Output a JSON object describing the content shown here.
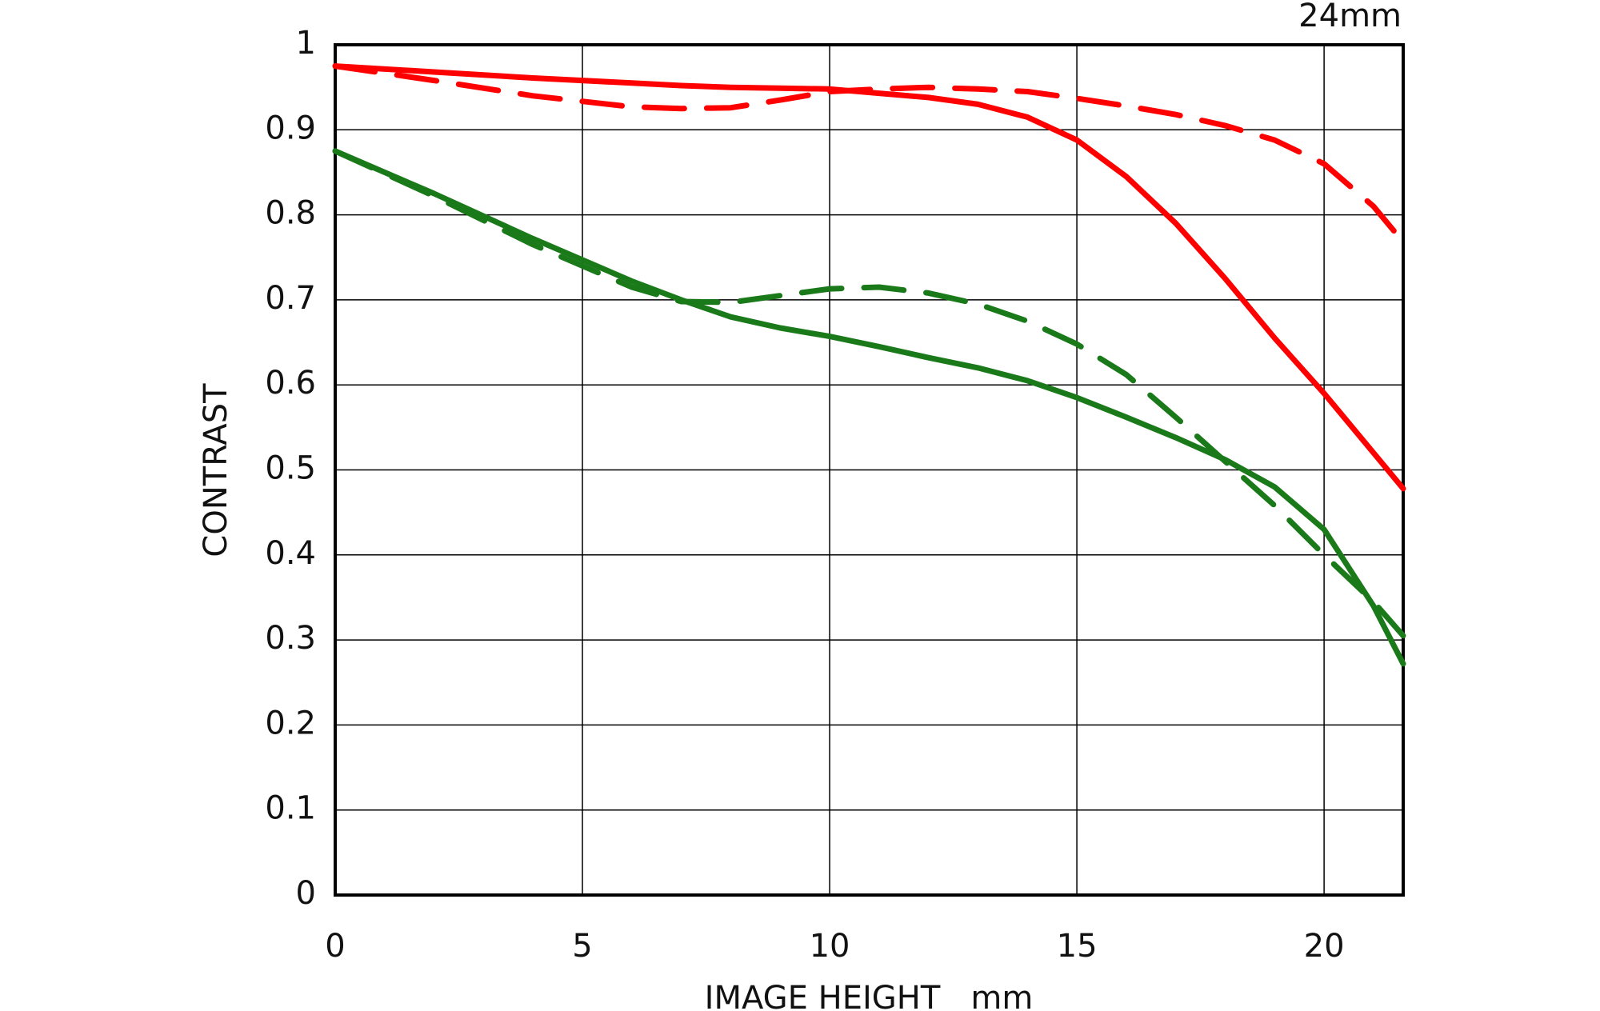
{
  "chart_data": {
    "type": "line",
    "title": "24mm",
    "x_label": "IMAGE HEIGHT   mm",
    "y_label": "CONTRAST",
    "x": [
      0,
      2,
      4,
      6,
      7,
      8,
      9,
      10,
      11,
      12,
      13,
      14,
      15,
      16,
      17,
      18,
      19,
      20,
      21,
      21.6
    ],
    "series": [
      {
        "color": "#ff0000",
        "dashed": false,
        "values": [
          0.975,
          0.968,
          0.961,
          0.955,
          0.952,
          0.95,
          0.949,
          0.948,
          0.943,
          0.938,
          0.93,
          0.915,
          0.888,
          0.845,
          0.79,
          0.725,
          0.655,
          0.59,
          0.52,
          0.478
        ]
      },
      {
        "color": "#ff0000",
        "dashed": true,
        "values": [
          0.975,
          0.958,
          0.94,
          0.927,
          0.925,
          0.926,
          0.935,
          0.945,
          0.948,
          0.95,
          0.948,
          0.945,
          0.937,
          0.928,
          0.918,
          0.905,
          0.888,
          0.86,
          0.81,
          0.768
        ]
      },
      {
        "color": "#1a7a1a",
        "dashed": false,
        "values": [
          0.875,
          0.825,
          0.772,
          0.722,
          0.7,
          0.68,
          0.667,
          0.657,
          0.645,
          0.632,
          0.62,
          0.605,
          0.585,
          0.562,
          0.538,
          0.512,
          0.48,
          0.43,
          0.34,
          0.272
        ]
      },
      {
        "color": "#1a7a1a",
        "dashed": true,
        "values": [
          0.875,
          0.822,
          0.765,
          0.715,
          0.698,
          0.697,
          0.705,
          0.713,
          0.715,
          0.708,
          0.695,
          0.675,
          0.648,
          0.612,
          0.562,
          0.51,
          0.458,
          0.4,
          0.345,
          0.305
        ]
      }
    ],
    "xlim": [
      0,
      21.6
    ],
    "xticks": [
      0,
      5,
      10,
      15,
      20
    ],
    "ylim": [
      0,
      1
    ],
    "yticks": [
      0,
      0.1,
      0.2,
      0.3,
      0.4,
      0.5,
      0.6,
      0.7,
      0.8,
      0.9,
      1
    ],
    "grid": true
  }
}
